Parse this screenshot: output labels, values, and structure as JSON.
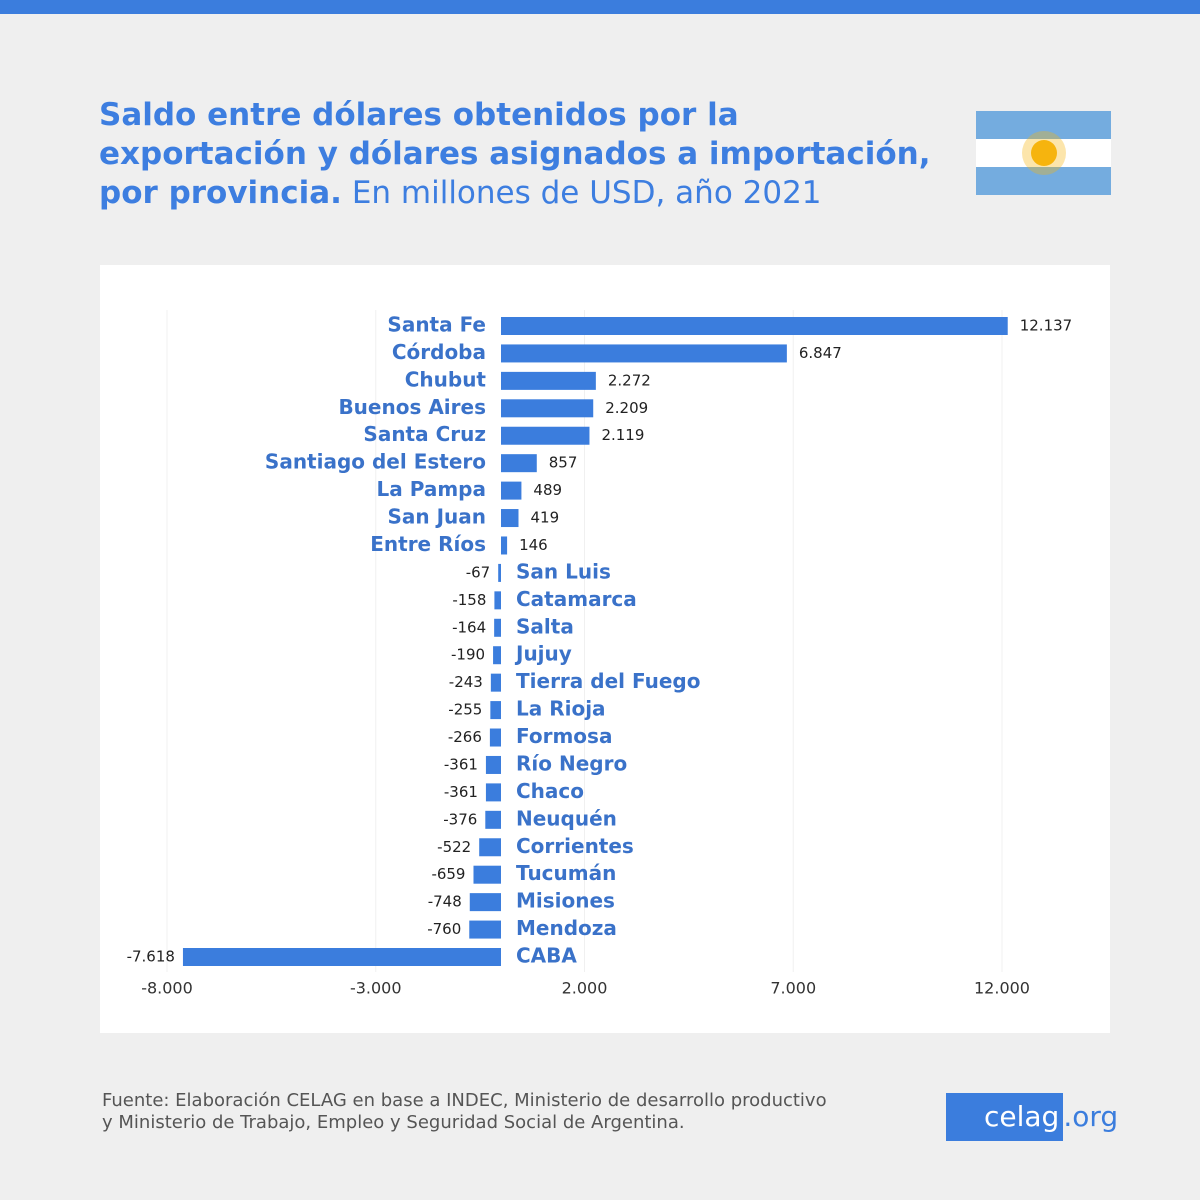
{
  "header": {
    "title": "Saldo entre dólares obtenidos por la exportación y dólares asignados a importación, por provincia.",
    "subtitle": "En millones de USD, año 2021"
  },
  "chart_data": {
    "type": "bar",
    "categories": [
      "Santa Fe",
      "Córdoba",
      "Chubut",
      "Buenos Aires",
      "Santa Cruz",
      "Santiago del Estero",
      "La Pampa",
      "San Juan",
      "Entre Ríos",
      "San Luis",
      "Catamarca",
      "Salta",
      "Jujuy",
      "Tierra del Fuego",
      "La Rioja",
      "Formosa",
      "Río Negro",
      "Chaco",
      "Neuquén",
      "Corrientes",
      "Tucumán",
      "Misiones",
      "Mendoza",
      "CABA"
    ],
    "values": [
      12137,
      6847,
      2272,
      2209,
      2119,
      857,
      489,
      419,
      146,
      -67,
      -158,
      -164,
      -190,
      -243,
      -255,
      -266,
      -361,
      -361,
      -376,
      -522,
      -659,
      -748,
      -760,
      -7618
    ],
    "value_labels": [
      "12.137",
      "6.847",
      "2.272",
      "2.209",
      "2.119",
      "857",
      "489",
      "419",
      "146",
      "-67",
      "-158",
      "-164",
      "-190",
      "-243",
      "-255",
      "-266",
      "-361",
      "-361",
      "-376",
      "-522",
      "-659",
      "-748",
      "-760",
      "-7.618"
    ],
    "color": "#3b7ddd",
    "xlim": [
      -8000,
      12000
    ],
    "xticks": [
      {
        "value": -8000,
        "label": "-8.000"
      },
      {
        "value": -3000,
        "label": "-3.000"
      },
      {
        "value": 2000,
        "label": "2.000"
      },
      {
        "value": 7000,
        "label": "7.000"
      },
      {
        "value": 12000,
        "label": "12.000"
      }
    ],
    "grid": true
  },
  "footer": {
    "source": "Fuente: Elaboración CELAG en base a INDEC, Ministerio de desarrollo productivo y Ministerio de Trabajo, Empleo y Seguridad Social de Argentina.",
    "logo_name": "celag",
    "logo_suffix": ".org"
  }
}
